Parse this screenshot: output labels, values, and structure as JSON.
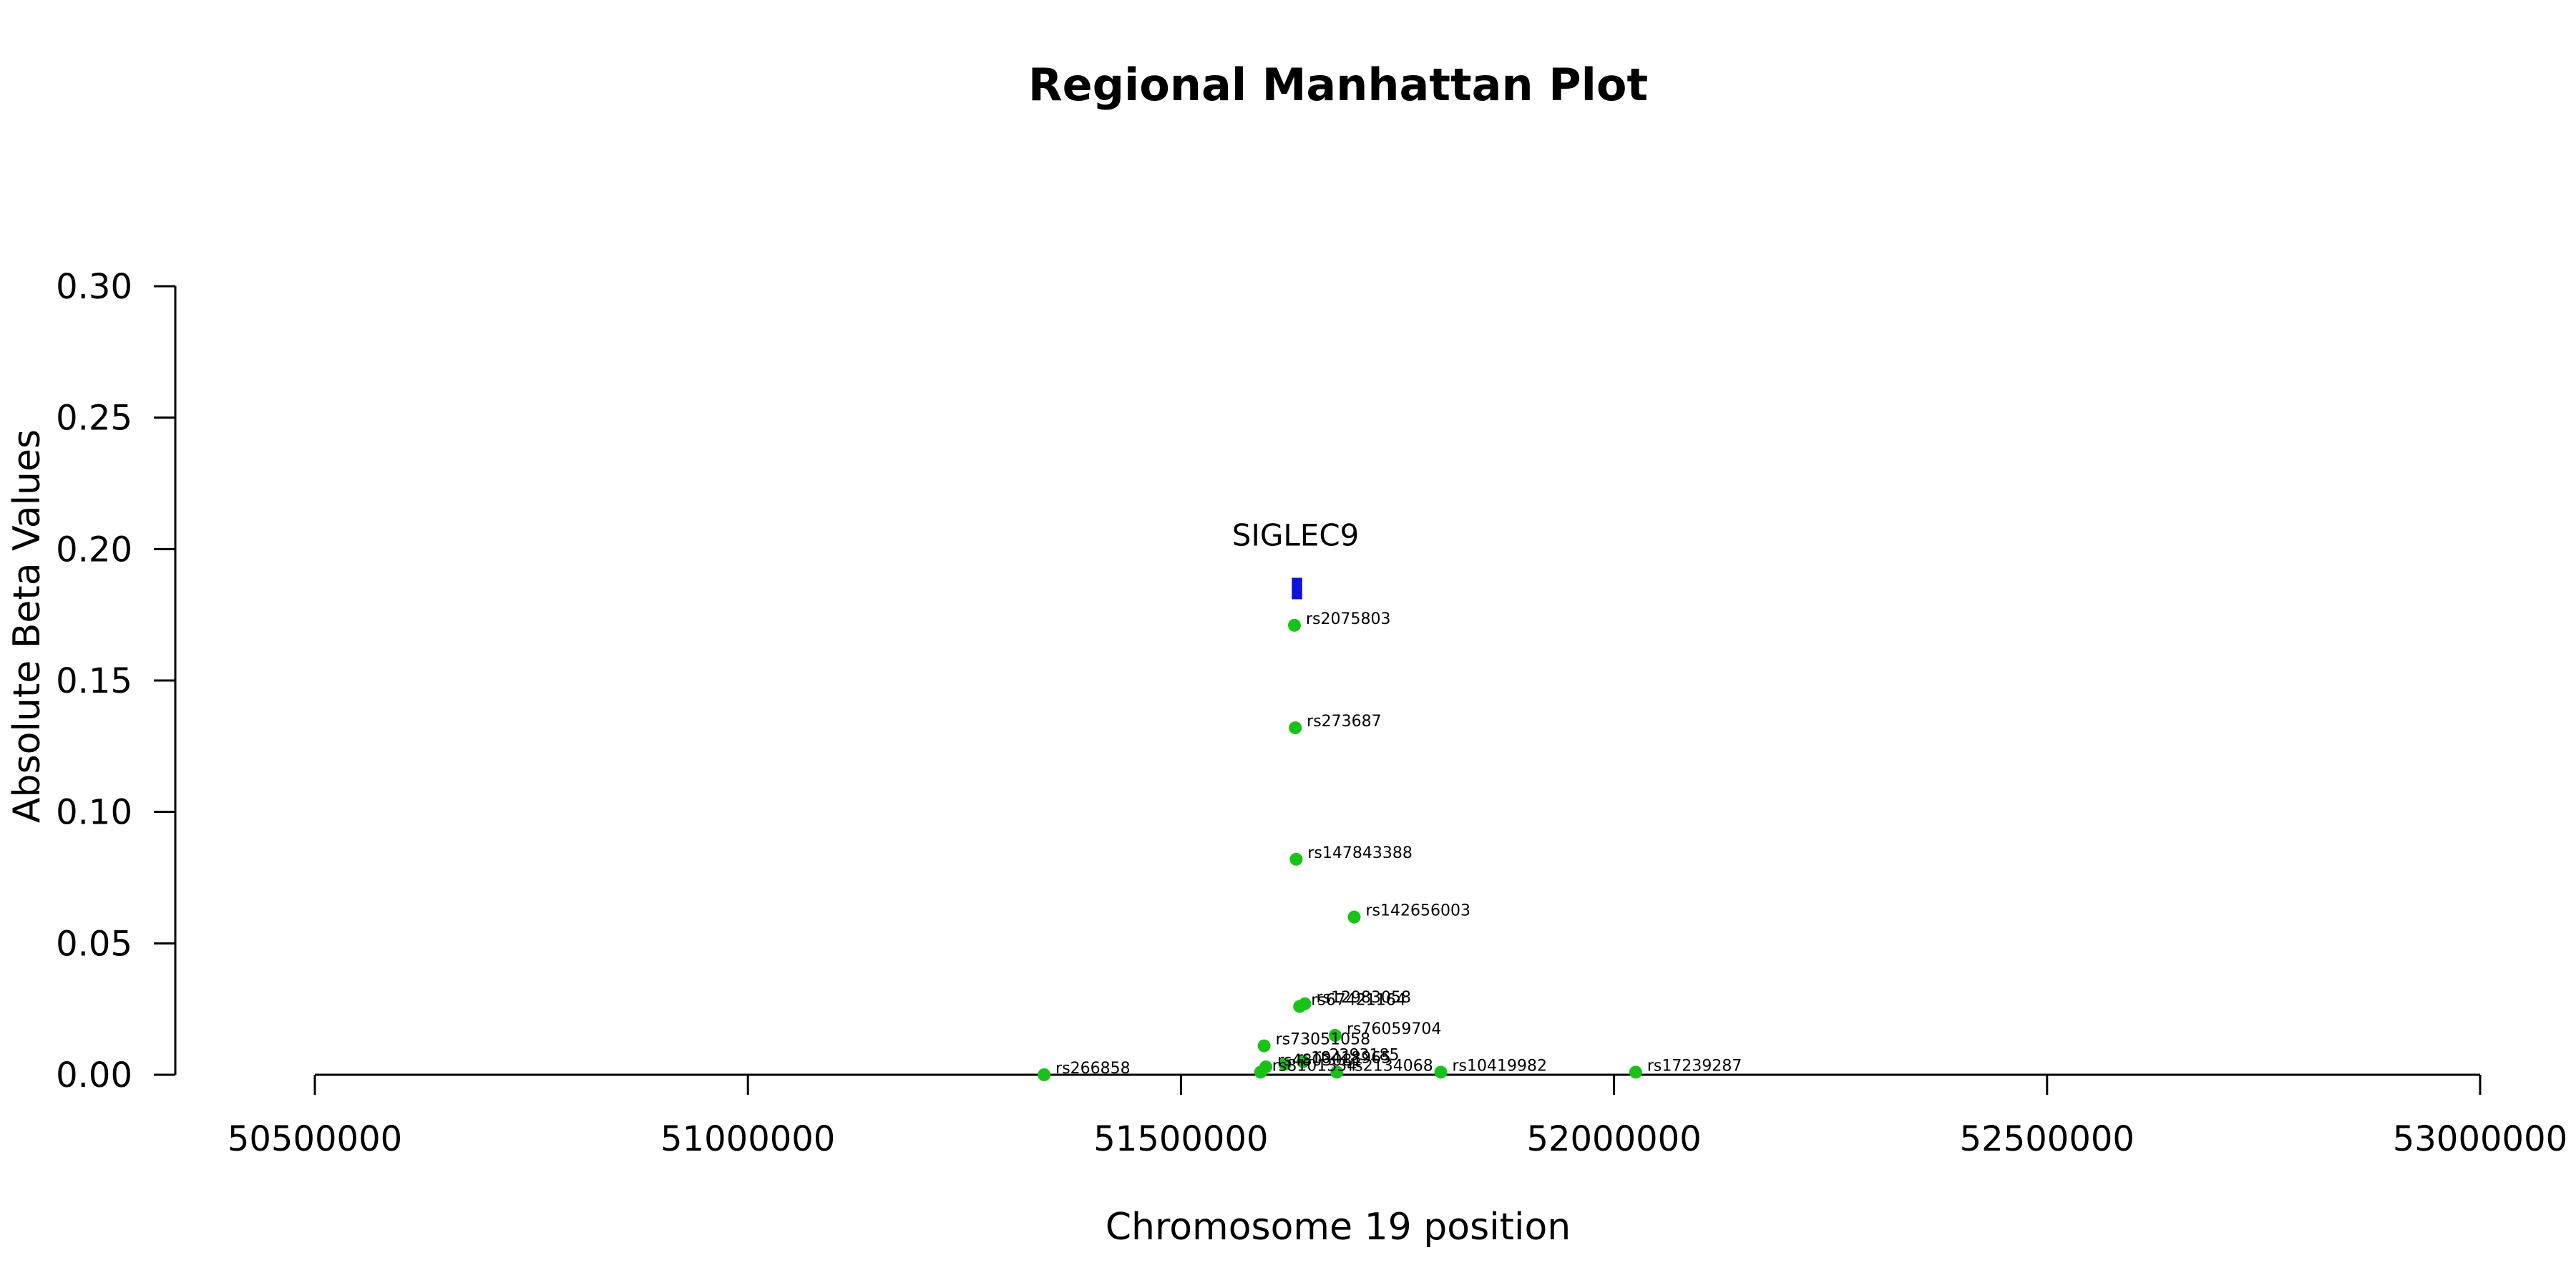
{
  "chart_data": {
    "type": "scatter",
    "title": "Regional Manhattan Plot",
    "xlabel": "Chromosome 19 position",
    "ylabel": "Absolute Beta Values",
    "xlim": [
      50500000,
      53000000
    ],
    "ylim": [
      0,
      0.3
    ],
    "x_ticks": [
      50500000,
      51000000,
      51500000,
      52000000,
      52500000,
      53000000
    ],
    "y_ticks": [
      0.0,
      0.05,
      0.1,
      0.15,
      0.2,
      0.25,
      0.3
    ],
    "y_tick_labels": [
      "0.00",
      "0.05",
      "0.10",
      "0.15",
      "0.20",
      "0.25",
      "0.30"
    ],
    "grid": false,
    "point_color": "#19c219",
    "gene_color": "#1010e0",
    "gene": {
      "name": "SIGLEC9",
      "start": 51628000,
      "end": 51640000,
      "y": 0.185
    },
    "points": [
      {
        "label": "rs2075803",
        "x": 51631000,
        "y": 0.171
      },
      {
        "label": "rs273687",
        "x": 51632000,
        "y": 0.132
      },
      {
        "label": "rs147843388",
        "x": 51633000,
        "y": 0.082
      },
      {
        "label": "rs142656003",
        "x": 51700000,
        "y": 0.06
      },
      {
        "label": "rs12983058",
        "x": 51643000,
        "y": 0.027
      },
      {
        "label": "rs67421164",
        "x": 51637000,
        "y": 0.026
      },
      {
        "label": "rs76059704",
        "x": 51678000,
        "y": 0.015
      },
      {
        "label": "rs73051058",
        "x": 51596000,
        "y": 0.011
      },
      {
        "label": "rs2293185",
        "x": 51641000,
        "y": 0.005
      },
      {
        "label": "rs10418965",
        "x": 51620000,
        "y": 0.004
      },
      {
        "label": "rs4803081",
        "x": 51598000,
        "y": 0.003
      },
      {
        "label": "rs2134068",
        "x": 51680000,
        "y": 0.001
      },
      {
        "label": "rs8101334",
        "x": 51592000,
        "y": 0.001
      },
      {
        "label": "rs266858",
        "x": 51342000,
        "y": 0.0
      },
      {
        "label": "rs10419982",
        "x": 51800000,
        "y": 0.001
      },
      {
        "label": "rs17239287",
        "x": 52025000,
        "y": 0.001
      }
    ]
  }
}
